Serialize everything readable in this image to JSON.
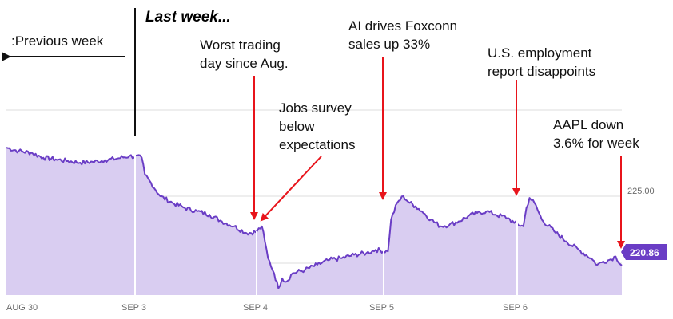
{
  "chart_data": {
    "type": "area",
    "title": "Last week...",
    "ticker": "AAPL",
    "x_ticks": [
      "AUG 30",
      "SEP 3",
      "SEP 4",
      "SEP 5",
      "SEP 6"
    ],
    "y_ticks": [
      225.0
    ],
    "ylim": [
      218.5,
      229.5
    ],
    "grid": true,
    "last_price": "220.86",
    "series": [
      {
        "points": [
          [
            0.0,
            227.9
          ],
          [
            0.02,
            227.7
          ],
          [
            0.04,
            227.6
          ],
          [
            0.06,
            227.3
          ],
          [
            0.08,
            227.2
          ],
          [
            0.1,
            227.1
          ],
          [
            0.12,
            227.0
          ],
          [
            0.14,
            227.05
          ],
          [
            0.16,
            227.15
          ],
          [
            0.18,
            227.25
          ],
          [
            0.2,
            227.4
          ],
          [
            0.22,
            227.3
          ],
          [
            0.225,
            226.3
          ],
          [
            0.235,
            225.8
          ],
          [
            0.25,
            225.0
          ],
          [
            0.27,
            224.6
          ],
          [
            0.29,
            224.3
          ],
          [
            0.31,
            224.1
          ],
          [
            0.33,
            223.9
          ],
          [
            0.35,
            223.5
          ],
          [
            0.37,
            223.2
          ],
          [
            0.39,
            222.8
          ],
          [
            0.405,
            222.85
          ],
          [
            0.415,
            223.2
          ],
          [
            0.42,
            222.3
          ],
          [
            0.425,
            221.3
          ],
          [
            0.435,
            220.4
          ],
          [
            0.442,
            219.5
          ],
          [
            0.448,
            220.1
          ],
          [
            0.455,
            219.9
          ],
          [
            0.465,
            220.4
          ],
          [
            0.485,
            220.6
          ],
          [
            0.505,
            220.9
          ],
          [
            0.525,
            221.2
          ],
          [
            0.545,
            221.3
          ],
          [
            0.565,
            221.5
          ],
          [
            0.585,
            221.6
          ],
          [
            0.6,
            221.8
          ],
          [
            0.62,
            221.7
          ],
          [
            0.625,
            223.6
          ],
          [
            0.635,
            224.6
          ],
          [
            0.645,
            225.0
          ],
          [
            0.655,
            224.6
          ],
          [
            0.665,
            224.4
          ],
          [
            0.675,
            224.1
          ],
          [
            0.69,
            223.6
          ],
          [
            0.705,
            223.2
          ],
          [
            0.72,
            223.3
          ],
          [
            0.735,
            223.5
          ],
          [
            0.75,
            223.8
          ],
          [
            0.765,
            224.0
          ],
          [
            0.78,
            224.1
          ],
          [
            0.795,
            223.9
          ],
          [
            0.815,
            223.7
          ],
          [
            0.825,
            223.4
          ],
          [
            0.84,
            223.2
          ],
          [
            0.845,
            224.3
          ],
          [
            0.85,
            224.9
          ],
          [
            0.858,
            224.6
          ],
          [
            0.87,
            223.6
          ],
          [
            0.89,
            222.9
          ],
          [
            0.91,
            222.3
          ],
          [
            0.93,
            221.8
          ],
          [
            0.95,
            221.3
          ],
          [
            0.96,
            220.9
          ],
          [
            0.97,
            221.1
          ],
          [
            0.98,
            221.2
          ],
          [
            0.99,
            221.4
          ],
          [
            1.0,
            220.86
          ]
        ]
      }
    ],
    "annotations": [
      {
        "lines": [
          "Worst trading",
          "day since Aug."
        ]
      },
      {
        "lines": [
          "Jobs survey",
          "below",
          "expectations"
        ]
      },
      {
        "lines": [
          "AI drives Foxconn",
          "sales up 33%"
        ]
      },
      {
        "lines": [
          "U.S. employment",
          "report disappoints"
        ]
      },
      {
        "lines": [
          "AAPL down",
          "3.6% for week"
        ]
      }
    ],
    "previous_week_label": ":Previous week",
    "colors": {
      "area_fill": "#d9cdf1",
      "line": "#6a3dc5",
      "arrow": "#e8141b",
      "grid": "#dcdcdc",
      "tick_text": "#6b6b6b",
      "price_box": "#6a3dc5"
    }
  }
}
